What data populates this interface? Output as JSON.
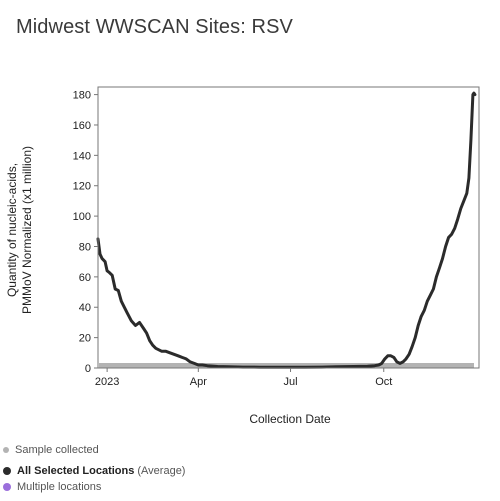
{
  "title": "Midwest WWSCAN Sites: RSV",
  "colors": {
    "line": "#2b2b2b",
    "samples": "#b3b3b3",
    "frame": "#777777",
    "multiple": "#9b6fdc"
  },
  "legend": {
    "sample_label": "Sample collected",
    "selected_label": "All Selected Locations",
    "selected_suffix": "(Average)",
    "multiple_label": "Multiple locations"
  },
  "chart_data": {
    "type": "line",
    "xlabel": "Collection Date",
    "ylabel_line1": "Quantity of nucleic-acids,",
    "ylabel_line2": "PMMoV Normalized (x1 million)",
    "ylim": [
      0,
      185
    ],
    "xlim": [
      "2022-12-23",
      "2024-01-03"
    ],
    "x_ticks": [
      {
        "date": "2023-01-01",
        "label": "2023"
      },
      {
        "date": "2023-04-01",
        "label": "Apr"
      },
      {
        "date": "2023-07-01",
        "label": "Jul"
      },
      {
        "date": "2023-10-01",
        "label": "Oct"
      }
    ],
    "y_ticks": [
      0,
      20,
      40,
      60,
      80,
      100,
      120,
      140,
      160,
      180
    ],
    "grid": false,
    "series": [
      {
        "x": [
          "2022-12-23",
          "2022-12-25",
          "2022-12-27",
          "2022-12-30",
          "2023-01-01",
          "2023-01-03",
          "2023-01-06",
          "2023-01-09",
          "2023-01-12",
          "2023-01-15",
          "2023-01-18",
          "2023-01-21",
          "2023-01-25",
          "2023-01-29",
          "2023-02-02",
          "2023-02-06",
          "2023-02-09",
          "2023-02-12",
          "2023-02-15",
          "2023-02-18",
          "2023-02-21",
          "2023-02-24",
          "2023-02-28",
          "2023-03-04",
          "2023-03-08",
          "2023-03-12",
          "2023-03-16",
          "2023-03-20",
          "2023-03-24",
          "2023-03-28",
          "2023-04-01",
          "2023-04-05",
          "2023-04-10",
          "2023-04-20",
          "2023-05-01",
          "2023-05-15",
          "2023-06-01",
          "2023-06-15",
          "2023-07-01",
          "2023-07-15",
          "2023-08-01",
          "2023-08-15",
          "2023-09-01",
          "2023-09-15",
          "2023-09-22",
          "2023-09-26",
          "2023-09-29",
          "2023-10-02",
          "2023-10-05",
          "2023-10-08",
          "2023-10-11",
          "2023-10-14",
          "2023-10-17",
          "2023-10-20",
          "2023-10-23",
          "2023-10-26",
          "2023-10-29",
          "2023-11-01",
          "2023-11-04",
          "2023-11-07",
          "2023-11-10",
          "2023-11-13",
          "2023-11-16",
          "2023-11-19",
          "2023-11-22",
          "2023-11-25",
          "2023-11-28",
          "2023-12-01",
          "2023-12-04",
          "2023-12-07",
          "2023-12-10",
          "2023-12-13",
          "2023-12-16",
          "2023-12-19",
          "2023-12-22",
          "2023-12-24",
          "2023-12-26",
          "2023-12-28",
          "2023-12-29",
          "2023-12-30"
        ],
        "y": [
          85,
          75,
          72,
          70,
          64,
          63,
          61,
          52,
          51,
          44,
          40,
          36,
          31,
          28,
          30,
          26,
          23,
          18,
          15,
          13,
          12,
          11,
          11,
          10,
          9,
          8,
          7,
          6,
          4,
          3,
          2,
          2,
          1.5,
          1,
          0.8,
          0.6,
          0.5,
          0.5,
          0.5,
          0.5,
          0.6,
          0.8,
          1,
          1.2,
          1.5,
          2,
          3,
          6,
          8,
          8,
          7,
          4,
          3,
          4,
          6,
          9,
          14,
          20,
          28,
          34,
          38,
          44,
          48,
          52,
          60,
          66,
          72,
          80,
          86,
          88,
          92,
          98,
          105,
          110,
          115,
          125,
          150,
          180,
          181,
          180
        ]
      }
    ]
  }
}
